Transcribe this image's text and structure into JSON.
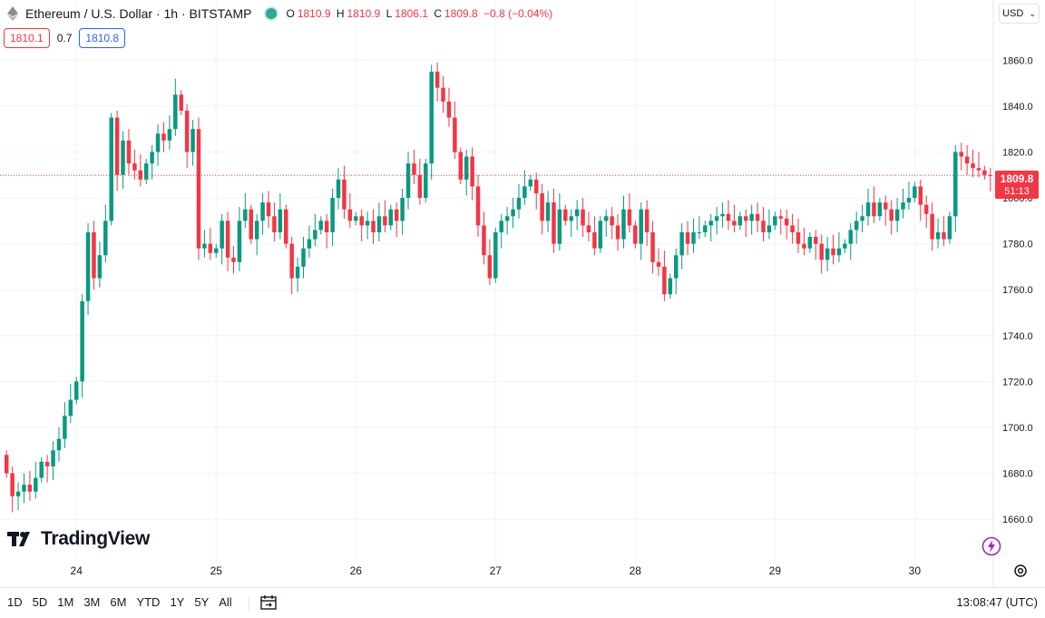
{
  "header": {
    "symbol_title": "Ethereum / U.S. Dollar · 1h · BITSTAMP",
    "ohlc": {
      "o_label": "O",
      "o": "1810.9",
      "h_label": "H",
      "h": "1810.9",
      "l_label": "L",
      "l": "1806.1",
      "c_label": "C",
      "c": "1809.8",
      "change": "−0.8 (−0.04%)"
    },
    "bid": "1810.1",
    "spread": "0.7",
    "ask": "1810.8",
    "currency": "USD"
  },
  "last_price": {
    "price": "1809.8",
    "countdown": "51:13"
  },
  "logo_text": "TradingView",
  "toolbar": {
    "ranges": [
      "1D",
      "5D",
      "1M",
      "3M",
      "6M",
      "YTD",
      "1Y",
      "5Y",
      "All"
    ],
    "clock": "13:08:47 (UTC)"
  },
  "colors": {
    "up": "#089981",
    "down": "#f23645",
    "grid": "#f0f3fa",
    "text": "#131722"
  },
  "chart_data": {
    "type": "candlestick",
    "title": "Ethereum / U.S. Dollar · 1h · BITSTAMP",
    "interval": "1h",
    "y_ticks": [
      1660,
      1680,
      1700,
      1720,
      1740,
      1760,
      1780,
      1800,
      1820,
      1840,
      1860
    ],
    "ylim": [
      1645,
      1872
    ],
    "x_day_labels": [
      {
        "label": "24",
        "index": 12
      },
      {
        "label": "25",
        "index": 36
      },
      {
        "label": "26",
        "index": 60
      },
      {
        "label": "27",
        "index": 84
      },
      {
        "label": "28",
        "index": 108
      },
      {
        "label": "29",
        "index": 132
      },
      {
        "label": "30",
        "index": 156
      }
    ],
    "last_price_line": 1809.8,
    "grid": true,
    "closes": [
      1680,
      1670,
      1672,
      1675,
      1672,
      1678,
      1685,
      1683,
      1690,
      1695,
      1705,
      1712,
      1720,
      1755,
      1785,
      1765,
      1775,
      1790,
      1835,
      1810,
      1825,
      1815,
      1812,
      1808,
      1815,
      1820,
      1828,
      1825,
      1830,
      1845,
      1838,
      1820,
      1830,
      1778,
      1780,
      1776,
      1778,
      1790,
      1774,
      1772,
      1790,
      1795,
      1782,
      1790,
      1798,
      1792,
      1785,
      1795,
      1780,
      1765,
      1770,
      1778,
      1782,
      1786,
      1790,
      1785,
      1800,
      1808,
      1795,
      1790,
      1792,
      1788,
      1790,
      1785,
      1792,
      1788,
      1795,
      1790,
      1800,
      1815,
      1810,
      1800,
      1815,
      1855,
      1848,
      1842,
      1835,
      1820,
      1808,
      1818,
      1805,
      1788,
      1775,
      1765,
      1785,
      1790,
      1792,
      1795,
      1800,
      1805,
      1808,
      1802,
      1790,
      1798,
      1780,
      1795,
      1790,
      1792,
      1795,
      1788,
      1785,
      1778,
      1790,
      1792,
      1788,
      1782,
      1795,
      1788,
      1780,
      1795,
      1785,
      1772,
      1770,
      1758,
      1765,
      1775,
      1785,
      1780,
      1785,
      1785,
      1788,
      1790,
      1792,
      1793,
      1790,
      1788,
      1792,
      1790,
      1793,
      1790,
      1785,
      1788,
      1792,
      1791,
      1788,
      1785,
      1780,
      1778,
      1783,
      1780,
      1773,
      1778,
      1775,
      1778,
      1780,
      1786,
      1790,
      1792,
      1798,
      1792,
      1798,
      1795,
      1790,
      1795,
      1798,
      1800,
      1805,
      1797,
      1793,
      1782,
      1785,
      1782,
      1792,
      1820,
      1818,
      1815,
      1813,
      1812,
      1810,
      1809.8
    ]
  }
}
